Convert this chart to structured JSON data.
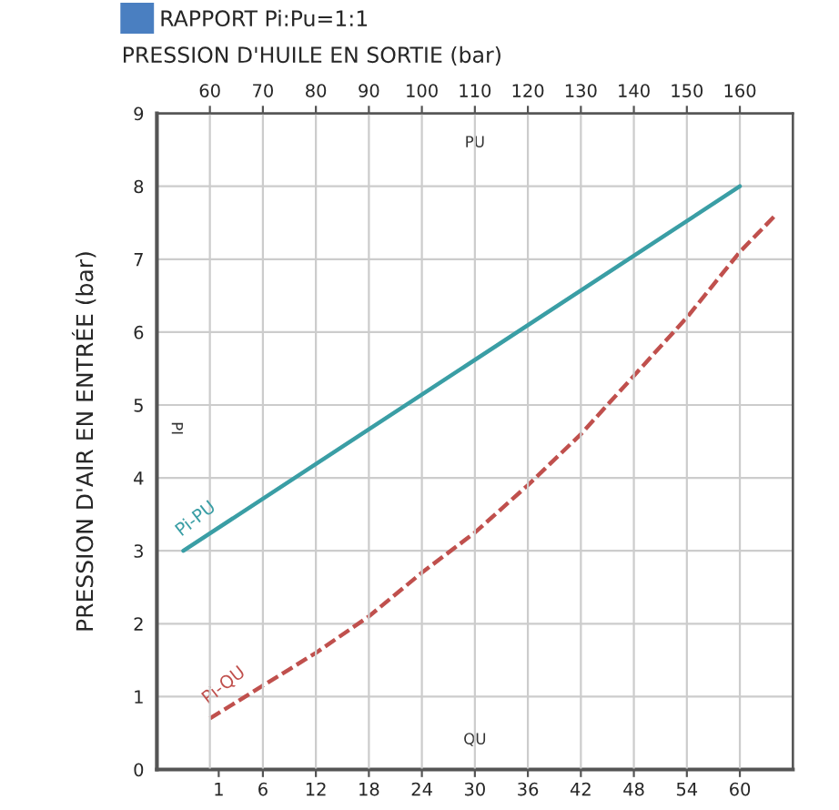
{
  "chart_data": {
    "type": "line",
    "title": "RAPPORT Pi:Pu=1:1",
    "xlabel": null,
    "x2label": "PRESSION D'HUILE EN SORTIE (bar)",
    "ylabel": "PRESSION D'AIR EN ENTRÉE (bar)",
    "xlim": [
      -6,
      66
    ],
    "xticks": [
      1,
      6,
      12,
      18,
      24,
      30,
      36,
      42,
      48,
      54,
      60
    ],
    "x2lim": [
      50,
      170
    ],
    "x2ticks": [
      60,
      70,
      80,
      90,
      100,
      110,
      120,
      130,
      140,
      150,
      160
    ],
    "ylim": [
      0,
      9
    ],
    "yticks": [
      0,
      1,
      2,
      3,
      4,
      5,
      6,
      7,
      8,
      9
    ],
    "grid": true,
    "legend": false,
    "series": [
      {
        "name": "Pi-PU",
        "axis": "x2",
        "color": "#3a9ea5",
        "line_style": "solid",
        "x": [
          55,
          160
        ],
        "values": [
          3,
          8
        ]
      },
      {
        "name": "Pi-QU",
        "color": "#c0504d",
        "line_style": "dashed",
        "x": [
          0,
          12,
          18,
          24,
          30,
          36,
          42,
          48,
          54,
          60,
          64
        ],
        "values": [
          0.7,
          1.6,
          2.1,
          2.7,
          3.25,
          3.9,
          4.6,
          5.4,
          6.2,
          7.1,
          7.6
        ]
      }
    ],
    "annotations": [
      "PU",
      "QU",
      "PI"
    ]
  }
}
